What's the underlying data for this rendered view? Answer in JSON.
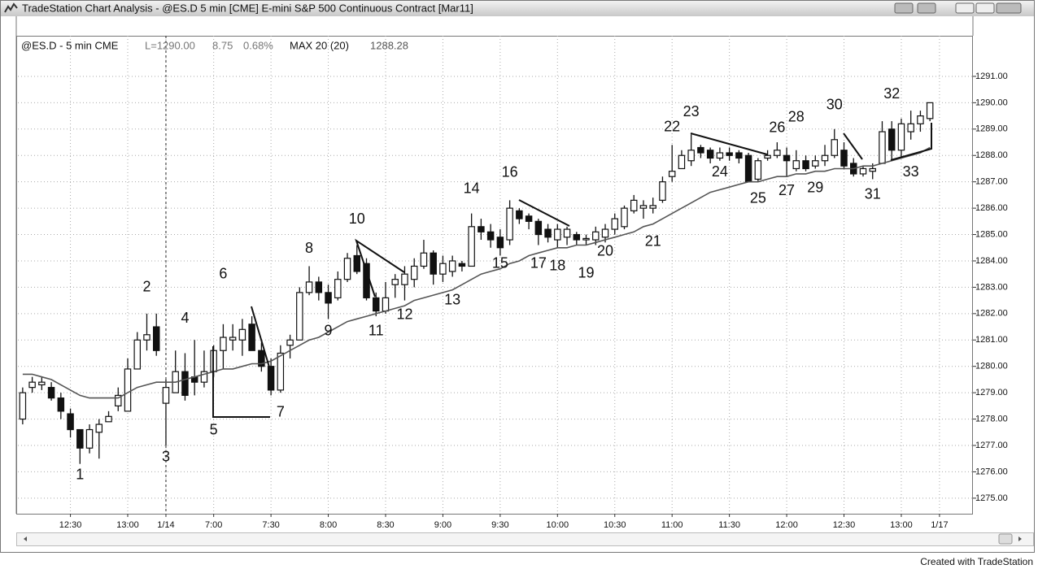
{
  "window_title": "TradeStation Chart Analysis - @ES.D 5 min [CME] E-mini S&P 500 Continuous Contract [Mar11]",
  "info": {
    "symbol": "@ES.D - 5 min CME",
    "last": "L=1290.00",
    "change": "8.75",
    "change_pct": "0.68%",
    "indicator": "MAX 20 (20)",
    "indicator_value": "1288.28"
  },
  "footer": "Created with TradeStation",
  "chart_data": {
    "type": "candlestick",
    "x": [
      0,
      1,
      2,
      3,
      4,
      5,
      6,
      7,
      8,
      9,
      10,
      11,
      12,
      13,
      14,
      15,
      16,
      17,
      18,
      19,
      20,
      21,
      22,
      23,
      24,
      25,
      26,
      27,
      28,
      29,
      30,
      31,
      32,
      33,
      34,
      35,
      36,
      37,
      38,
      39,
      40,
      41,
      42,
      43,
      44,
      45,
      46,
      47,
      48,
      49,
      50,
      51,
      52,
      53,
      54,
      55,
      56,
      57,
      58,
      59,
      60,
      61,
      62,
      63,
      64,
      65,
      66,
      67,
      68,
      69,
      70,
      71,
      72,
      73,
      74,
      75,
      76,
      77,
      78,
      79,
      80,
      81,
      82,
      83,
      84,
      85,
      86,
      87,
      88,
      89,
      90,
      91,
      92,
      93,
      94,
      95
    ],
    "open": [
      1278,
      1279.2,
      1279.3,
      1279.2,
      1278.8,
      1278.2,
      1277.6,
      1276.9,
      1277.5,
      1277.9,
      1278.5,
      1278.3,
      1279.9,
      1281,
      1281.5,
      1278.6,
      1279,
      1279.8,
      1279.6,
      1279.4,
      1279.8,
      1280.6,
      1281,
      1281,
      1281.6,
      1280.6,
      1280,
      1279.1,
      1280.8,
      1281,
      1282.8,
      1283.2,
      1282.8,
      1282.6,
      1283.3,
      1284.2,
      1283.9,
      1282.6,
      1282.1,
      1283.1,
      1283.1,
      1283.3,
      1283.8,
      1284.3,
      1283.5,
      1283.6,
      1283.9,
      1283.8,
      1285.3,
      1285.1,
      1284.9,
      1284.8,
      1285.9,
      1285.7,
      1285.5,
      1285.2,
      1284.8,
      1284.9,
      1285,
      1284.8,
      1284.8,
      1284.9,
      1285.2,
      1285.3,
      1285.9,
      1286,
      1286,
      1286.3,
      1287.2,
      1287.5,
      1287.8,
      1288.3,
      1288.2,
      1287.9,
      1288.1,
      1288.1,
      1288,
      1287.1,
      1287.9,
      1288,
      1288,
      1287.5,
      1287.8,
      1287.6,
      1287.8,
      1288,
      1288.2,
      1287.7,
      1287.3,
      1287.4,
      1287.7,
      1289,
      1288.2,
      1288.9,
      1289.2,
      1289.4
    ],
    "high": [
      1279.2,
      1279.6,
      1279.6,
      1279.4,
      1279,
      1278.4,
      1277.6,
      1277.8,
      1278,
      1278.3,
      1279.2,
      1280.3,
      1281.3,
      1282,
      1282,
      1279.5,
      1280.6,
      1280.5,
      1281,
      1280.6,
      1280.8,
      1281.6,
      1281.6,
      1281.8,
      1281.9,
      1280.9,
      1280.3,
      1280.8,
      1281.2,
      1283,
      1283.8,
      1283.4,
      1283.1,
      1283.6,
      1284.3,
      1284.6,
      1284.1,
      1282.8,
      1283.2,
      1283.5,
      1283.8,
      1284.1,
      1284.8,
      1284.4,
      1284.2,
      1284.2,
      1284,
      1285.8,
      1285.6,
      1285.4,
      1285.2,
      1286.3,
      1286,
      1285.8,
      1285.6,
      1285.4,
      1285.4,
      1285.3,
      1285.1,
      1285,
      1285.3,
      1285.4,
      1285.8,
      1286.1,
      1286.5,
      1286.3,
      1286.4,
      1287.2,
      1288.4,
      1288.2,
      1288.8,
      1288.4,
      1288.3,
      1288.3,
      1288.3,
      1288.2,
      1288.1,
      1287.9,
      1288.2,
      1288.5,
      1288.3,
      1288.2,
      1288,
      1288,
      1288.4,
      1289,
      1288.5,
      1287.9,
      1287.6,
      1287.7,
      1289.3,
      1289.3,
      1289.4,
      1289.7,
      1289.7,
      1290
    ],
    "low": [
      1277.8,
      1279,
      1279.1,
      1278.7,
      1278,
      1277.3,
      1276.3,
      1276.7,
      1276.5,
      1277.9,
      1278.3,
      1278.3,
      1279.9,
      1280.6,
      1280.4,
      1277,
      1279,
      1278.7,
      1278.9,
      1279.2,
      1279.6,
      1279.9,
      1280.6,
      1280.4,
      1280.6,
      1279.8,
      1278.9,
      1279,
      1280.3,
      1281,
      1282.7,
      1282.5,
      1281.8,
      1282.5,
      1283.2,
      1283.5,
      1282.5,
      1281.9,
      1282,
      1282.6,
      1282.5,
      1283,
      1283.7,
      1283.1,
      1283.2,
      1283.4,
      1283.6,
      1283.8,
      1284.8,
      1284.5,
      1284.2,
      1284.6,
      1285.4,
      1285.2,
      1284.6,
      1284.7,
      1284.5,
      1284.6,
      1284.6,
      1284.6,
      1284.6,
      1284.7,
      1285,
      1285.2,
      1285.8,
      1285.6,
      1285.8,
      1286.2,
      1287,
      1287.5,
      1287.6,
      1287.9,
      1287.7,
      1287.8,
      1287.8,
      1287.7,
      1287,
      1287,
      1287.8,
      1287.9,
      1287.2,
      1287.4,
      1287.4,
      1287.5,
      1287.6,
      1287.9,
      1287.5,
      1287.2,
      1287.2,
      1287.1,
      1287.7,
      1287.8,
      1287.9,
      1288.6,
      1288.9,
      1289.3
    ],
    "close": [
      1279,
      1279.4,
      1279.4,
      1278.8,
      1278.3,
      1277.6,
      1276.9,
      1277.6,
      1277.8,
      1278.1,
      1278.9,
      1279.9,
      1281,
      1281.2,
      1280.6,
      1279.2,
      1279.8,
      1278.9,
      1279.4,
      1279.8,
      1280.6,
      1281.1,
      1281.1,
      1281.4,
      1280.6,
      1280,
      1279.1,
      1280.5,
      1281,
      1282.8,
      1283.2,
      1282.8,
      1282.4,
      1283.3,
      1284.1,
      1283.6,
      1282.6,
      1282.1,
      1282.6,
      1283.3,
      1283.5,
      1283.8,
      1284.3,
      1283.5,
      1283.9,
      1284,
      1283.8,
      1285.3,
      1285.1,
      1284.8,
      1284.5,
      1286,
      1285.6,
      1285.5,
      1285,
      1284.9,
      1285.2,
      1285.2,
      1284.8,
      1284.85,
      1285.1,
      1285.2,
      1285.6,
      1286,
      1286.3,
      1286.1,
      1286.1,
      1287,
      1287.4,
      1288,
      1288.2,
      1288.1,
      1287.9,
      1288.1,
      1288,
      1287.9,
      1287,
      1287.8,
      1288,
      1288.2,
      1287.8,
      1287.8,
      1287.5,
      1287.8,
      1288,
      1288.6,
      1287.6,
      1287.3,
      1287.5,
      1287.5,
      1288.9,
      1288.2,
      1289.2,
      1289.2,
      1289.5,
      1290
    ],
    "up_color": "#ffffff",
    "down_color": "#111111",
    "ma_values": [
      1279.7,
      1279.7,
      1279.6,
      1279.5,
      1279.3,
      1279.1,
      1278.9,
      1278.8,
      1278.8,
      1278.8,
      1278.8,
      1279,
      1279.2,
      1279.3,
      1279.4,
      1279.4,
      1279.4,
      1279.5,
      1279.6,
      1279.7,
      1279.8,
      1279.9,
      1279.9,
      1280,
      1280.1,
      1280.1,
      1280.2,
      1280.4,
      1280.6,
      1280.8,
      1281,
      1281.1,
      1281.3,
      1281.5,
      1281.7,
      1281.8,
      1281.9,
      1282,
      1282.1,
      1282.2,
      1282.3,
      1282.5,
      1282.6,
      1282.7,
      1282.8,
      1282.9,
      1283.1,
      1283.3,
      1283.5,
      1283.6,
      1283.7,
      1283.9,
      1284,
      1284.2,
      1284.3,
      1284.4,
      1284.5,
      1284.5,
      1284.6,
      1284.6,
      1284.7,
      1284.8,
      1284.9,
      1285,
      1285.1,
      1285.3,
      1285.4,
      1285.6,
      1285.8,
      1286,
      1286.2,
      1286.4,
      1286.6,
      1286.7,
      1286.8,
      1286.9,
      1287,
      1287,
      1287.1,
      1287.2,
      1287.2,
      1287.3,
      1287.3,
      1287.4,
      1287.4,
      1287.5,
      1287.5,
      1287.5,
      1287.6,
      1287.6,
      1287.7,
      1287.8,
      1287.9,
      1288,
      1288.1,
      1288.3
    ],
    "ma_color": "#555555",
    "xlim": [
      -0.5,
      99.5
    ],
    "ylim": [
      1274.41,
      1292.54
    ],
    "xticks": [
      {
        "value": 5,
        "label": "12:30"
      },
      {
        "value": 11,
        "label": "13:00"
      },
      {
        "value": 15,
        "label": "1/14"
      },
      {
        "value": 20,
        "label": "7:00"
      },
      {
        "value": 26,
        "label": "7:30"
      },
      {
        "value": 32,
        "label": "8:00"
      },
      {
        "value": 38,
        "label": "8:30"
      },
      {
        "value": 44,
        "label": "9:00"
      },
      {
        "value": 50,
        "label": "9:30"
      },
      {
        "value": 56,
        "label": "10:00"
      },
      {
        "value": 62,
        "label": "10:30"
      },
      {
        "value": 68,
        "label": "11:00"
      },
      {
        "value": 74,
        "label": "11:30"
      },
      {
        "value": 80,
        "label": "12:00"
      },
      {
        "value": 86,
        "label": "12:30"
      },
      {
        "value": 92,
        "label": "13:00"
      },
      {
        "value": 96,
        "label": "1/17"
      }
    ],
    "yticks": [
      {
        "value": 1275,
        "label": "1275.00"
      },
      {
        "value": 1276,
        "label": "1276.00"
      },
      {
        "value": 1277,
        "label": "1277.00"
      },
      {
        "value": 1278,
        "label": "1278.00"
      },
      {
        "value": 1279,
        "label": "1279.00"
      },
      {
        "value": 1280,
        "label": "1280.00"
      },
      {
        "value": 1281,
        "label": "1281.00"
      },
      {
        "value": 1282,
        "label": "1282.00"
      },
      {
        "value": 1283,
        "label": "1283.00"
      },
      {
        "value": 1284,
        "label": "1284.00"
      },
      {
        "value": 1285,
        "label": "1285.00"
      },
      {
        "value": 1286,
        "label": "1286.00"
      },
      {
        "value": 1287,
        "label": "1287.00"
      },
      {
        "value": 1288,
        "label": "1288.00"
      },
      {
        "value": 1289,
        "label": "1289.00"
      },
      {
        "value": 1290,
        "label": "1290.00"
      },
      {
        "value": 1291,
        "label": "1291.00"
      }
    ],
    "grid": true,
    "session_break": 15,
    "annotations": [
      {
        "text": "1",
        "x": 6,
        "y": 1275.87
      },
      {
        "text": "2",
        "x": 13,
        "y": 1282.99
      },
      {
        "text": "3",
        "x": 15,
        "y": 1276.54
      },
      {
        "text": "4",
        "x": 17,
        "y": 1281.81
      },
      {
        "text": "5",
        "x": 20,
        "y": 1277.56
      },
      {
        "text": "6",
        "x": 21,
        "y": 1283.48
      },
      {
        "text": "7",
        "x": 27,
        "y": 1278.24
      },
      {
        "text": "8",
        "x": 30,
        "y": 1284.46
      },
      {
        "text": "9",
        "x": 32,
        "y": 1281.32
      },
      {
        "text": "10",
        "x": 35,
        "y": 1285.57
      },
      {
        "text": "11",
        "x": 37,
        "y": 1281.32
      },
      {
        "text": "12",
        "x": 40,
        "y": 1281.94
      },
      {
        "text": "13",
        "x": 45,
        "y": 1282.49
      },
      {
        "text": "14",
        "x": 47,
        "y": 1286.72
      },
      {
        "text": "15",
        "x": 50,
        "y": 1283.88
      },
      {
        "text": "16",
        "x": 51,
        "y": 1287.33
      },
      {
        "text": "17",
        "x": 54,
        "y": 1283.88
      },
      {
        "text": "18",
        "x": 56,
        "y": 1283.79
      },
      {
        "text": "19",
        "x": 59,
        "y": 1283.51
      },
      {
        "text": "20",
        "x": 61,
        "y": 1284.34
      },
      {
        "text": "21",
        "x": 66,
        "y": 1284.71
      },
      {
        "text": "22",
        "x": 68,
        "y": 1289.06
      },
      {
        "text": "23",
        "x": 70,
        "y": 1289.64
      },
      {
        "text": "24",
        "x": 73,
        "y": 1287.36
      },
      {
        "text": "25",
        "x": 77,
        "y": 1286.35
      },
      {
        "text": "26",
        "x": 79,
        "y": 1289.03
      },
      {
        "text": "27",
        "x": 80,
        "y": 1286.65
      },
      {
        "text": "28",
        "x": 81,
        "y": 1289.43
      },
      {
        "text": "29",
        "x": 83,
        "y": 1286.75
      },
      {
        "text": "30",
        "x": 85,
        "y": 1289.89
      },
      {
        "text": "31",
        "x": 89,
        "y": 1286.5
      },
      {
        "text": "32",
        "x": 91,
        "y": 1290.32
      },
      {
        "text": "33",
        "x": 93,
        "y": 1287.36
      }
    ]
  }
}
